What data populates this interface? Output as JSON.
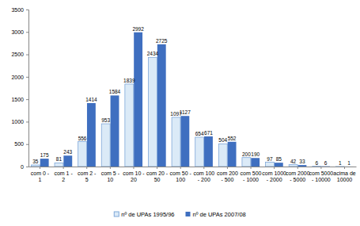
{
  "chart_data": {
    "type": "bar",
    "categories": [
      "com 0 - 1",
      "com 1 - 2",
      "com 2 - 5",
      "com 5 - 10",
      "com 10 - 20",
      "com 20 - 50",
      "com 50 - 100",
      "com 100 - 200",
      "com 200 - 500",
      "com 500 - 1000",
      "com 1000 - 2000",
      "com 2000 - 5000",
      "com 5000 - 10000",
      "acima de 10000"
    ],
    "series": [
      {
        "name": "nº de UPAs 1995/96",
        "color": "#dbeaf7",
        "values": [
          35,
          81,
          556,
          953,
          1839,
          2434,
          1097,
          654,
          504,
          200,
          97,
          42,
          6,
          1
        ]
      },
      {
        "name": "nº de UPAs 2007/08",
        "color": "#3f6fc0",
        "values": [
          175,
          243,
          1414,
          1584,
          2992,
          2725,
          1127,
          671,
          552,
          190,
          85,
          33,
          6,
          1
        ]
      }
    ],
    "ylim": [
      0,
      3500
    ],
    "yticks": [
      0,
      500,
      1000,
      1500,
      2000,
      2500,
      3000,
      3500
    ],
    "grid": false,
    "legend": "bottom",
    "data_labels": true
  }
}
